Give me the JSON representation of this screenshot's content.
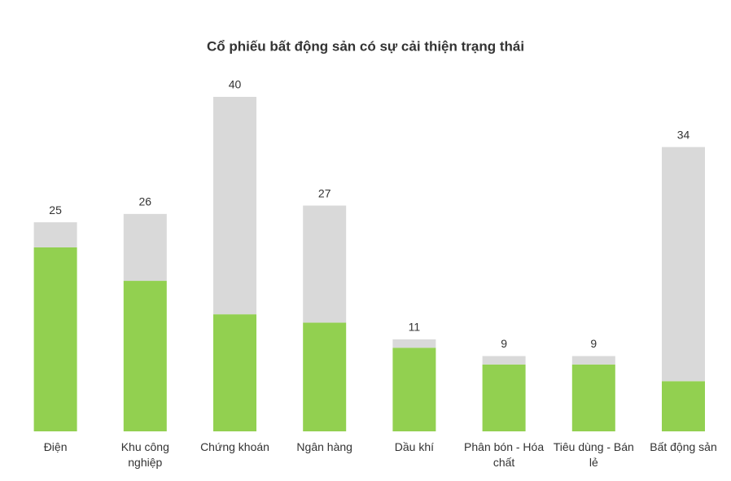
{
  "chart_data": {
    "type": "stacked-bar",
    "title": "Cổ phiếu bất động sản có sự cải thiện trạng thái",
    "categories": [
      "Điện",
      "Khu công nghiệp",
      "Chứng khoán",
      "Ngân hàng",
      "Dầu khí",
      "Phân bón - Hóa chất",
      "Tiêu dùng - Bán lẻ",
      "Bất động sản"
    ],
    "series": [
      {
        "color": "#92d050",
        "values": [
          22,
          18,
          14,
          13,
          10,
          8,
          8,
          6
        ]
      },
      {
        "color": "#d9d9d9",
        "values": [
          3,
          8,
          26,
          14,
          1,
          1,
          1,
          28
        ]
      }
    ],
    "totals": [
      25,
      26,
      40,
      27,
      11,
      9,
      9,
      34
    ],
    "ylim": [
      0,
      43
    ]
  }
}
